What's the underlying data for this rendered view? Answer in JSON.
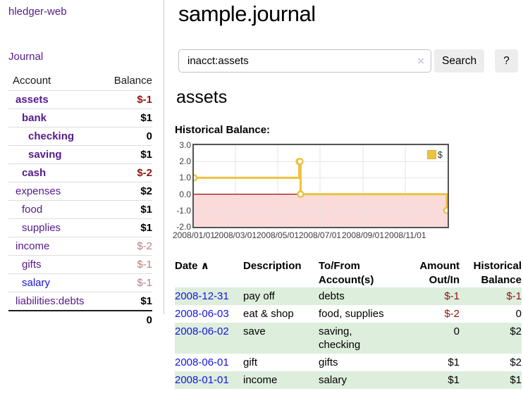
{
  "app": {
    "title": "hledger-web"
  },
  "sidebar": {
    "journal_link": "Journal",
    "headers": {
      "account": "Account",
      "balance": "Balance"
    },
    "rows": [
      {
        "name": "assets",
        "balance": "$-1"
      },
      {
        "name": "bank",
        "balance": "$1"
      },
      {
        "name": "checking",
        "balance": "0"
      },
      {
        "name": "saving",
        "balance": "$1"
      },
      {
        "name": "cash",
        "balance": "$-2"
      },
      {
        "name": "expenses",
        "balance": "$2"
      },
      {
        "name": "food",
        "balance": "$1"
      },
      {
        "name": "supplies",
        "balance": "$1"
      },
      {
        "name": "income",
        "balance": "$-2"
      },
      {
        "name": "gifts",
        "balance": "$-1"
      },
      {
        "name": "salary",
        "balance": "$-1"
      },
      {
        "name": "liabilities:debts",
        "balance": "$1"
      }
    ],
    "total": "0"
  },
  "main": {
    "title": "sample.journal",
    "search": {
      "value": "inacct:assets",
      "clear_icon": "×",
      "search_button": "Search",
      "help_button": "?"
    },
    "account_heading": "assets",
    "chart_label": "Historical Balance:"
  },
  "chart_data": {
    "type": "line",
    "style": "step",
    "title": "Historical Balance",
    "series": [
      {
        "name": "$",
        "color": "#edc240",
        "points": [
          [
            "2008-01-01",
            1
          ],
          [
            "2008-06-01",
            2
          ],
          [
            "2008-06-02",
            2
          ],
          [
            "2008-06-03",
            0
          ],
          [
            "2008-12-31",
            -1
          ]
        ]
      }
    ],
    "ylim": [
      -2,
      3
    ],
    "y_ticks": [
      "3.0",
      "2.0",
      "1.0",
      "0.0",
      "-1.0",
      "-2.0"
    ],
    "x_ticks": [
      "2008/01/01",
      "2008/03/01",
      "2008/05/01",
      "2008/07/01",
      "2008/09/01",
      "2008/11/01"
    ],
    "x_range": [
      "2008-01-01",
      "2009-01-01"
    ],
    "grid": true,
    "zero_line_color": "#9f1010",
    "negative_fill": "#fbdada",
    "legend": {
      "label": "$",
      "position": "top-right"
    }
  },
  "register": {
    "headers": {
      "date": "Date",
      "sort_icon": "∧",
      "description": "Description",
      "accounts": "To/From Account(s)",
      "amount": "Amount Out/In",
      "balance": "Historical Balance"
    },
    "rows": [
      {
        "date": "2008-12-31",
        "description": "pay off",
        "accounts": "debts",
        "amount": "$-1",
        "balance": "$-1"
      },
      {
        "date": "2008-06-03",
        "description": "eat & shop",
        "accounts": "food, supplies",
        "amount": "$-2",
        "balance": "0"
      },
      {
        "date": "2008-06-02",
        "description": "save",
        "accounts": "saving, checking",
        "amount": "0",
        "balance": "$2"
      },
      {
        "date": "2008-06-01",
        "description": "gift",
        "accounts": "gifts",
        "amount": "$1",
        "balance": "$2"
      },
      {
        "date": "2008-01-01",
        "description": "income",
        "accounts": "salary",
        "amount": "$1",
        "balance": "$1"
      }
    ]
  },
  "colors": {
    "link_purple": "#551a8b",
    "link_blue": "#1414e0",
    "negative_strong": "#8f1414",
    "negative_muted": "#b97e7e",
    "row_green": "#ddeedd",
    "series_yellow": "#edc240"
  }
}
